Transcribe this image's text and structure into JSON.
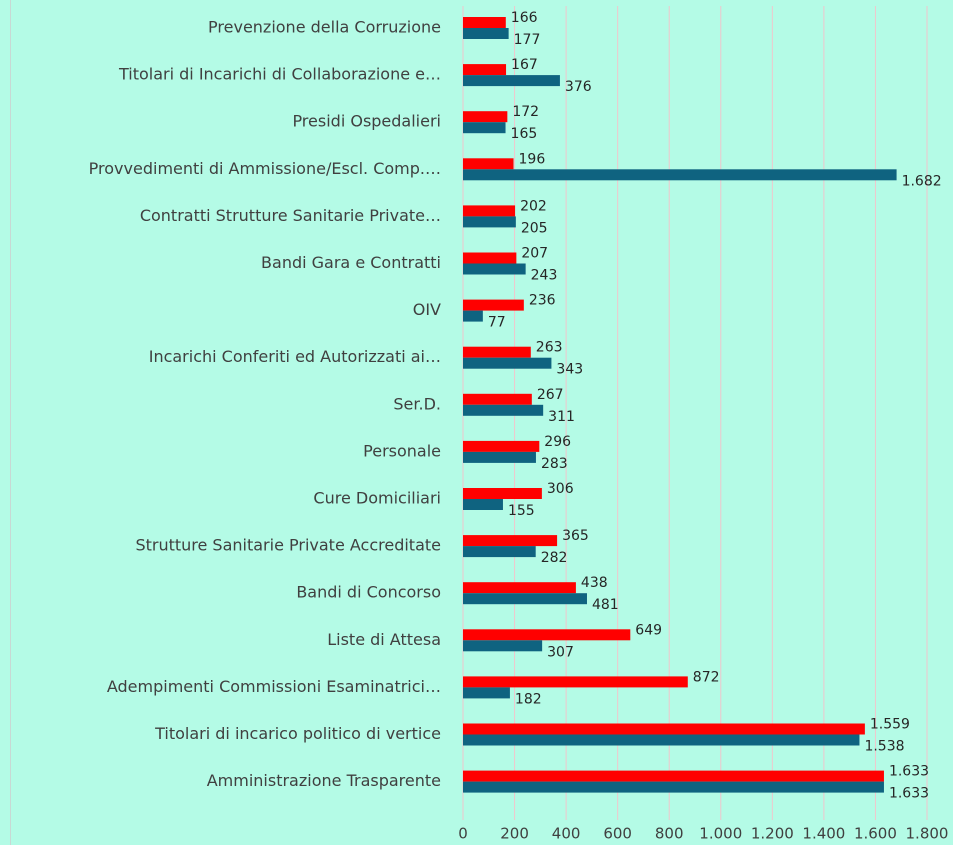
{
  "chart_data": {
    "type": "bar",
    "orientation": "horizontal",
    "categories": [
      "Prevenzione della Corruzione",
      "Titolari di Incarichi di Collaborazione e…",
      "Presidi Ospedalieri",
      "Provvedimenti di Ammissione/Escl. Comp.…",
      "Contratti Strutture Sanitarie Private…",
      "Bandi Gara e Contratti",
      "OIV",
      "Incarichi Conferiti ed Autorizzati ai…",
      "Ser.D.",
      "Personale",
      "Cure Domiciliari",
      "Strutture Sanitarie Private Accreditate",
      "Bandi di Concorso",
      "Liste di Attesa",
      "Adempimenti Commissioni Esaminatrici…",
      "Titolari di incarico politico di vertice",
      "Amministrazione Trasparente"
    ],
    "series": [
      {
        "color": "#ff0000",
        "values": [
          166,
          167,
          172,
          196,
          202,
          207,
          236,
          263,
          267,
          296,
          306,
          365,
          438,
          649,
          872,
          1559,
          1633
        ],
        "value_labels": [
          "166",
          "167",
          "172",
          "196",
          "202",
          "207",
          "236",
          "263",
          "267",
          "296",
          "306",
          "365",
          "438",
          "649",
          "872",
          "1.559",
          "1.633"
        ]
      },
      {
        "color": "#0f6380",
        "values": [
          177,
          376,
          165,
          1682,
          205,
          243,
          77,
          343,
          311,
          283,
          155,
          282,
          481,
          307,
          182,
          1538,
          1633
        ],
        "value_labels": [
          "177",
          "376",
          "165",
          "1.682",
          "205",
          "243",
          "77",
          "343",
          "311",
          "283",
          "155",
          "282",
          "481",
          "307",
          "182",
          "1.538",
          "1.633"
        ]
      }
    ],
    "xlim": [
      0,
      1800
    ],
    "xticks": [
      0,
      200,
      400,
      600,
      800,
      {
        "value": 1000,
        "label": "1.000"
      },
      {
        "value": 1200,
        "label": "1.200"
      },
      {
        "value": 1400,
        "label": "1.400"
      },
      {
        "value": 1600,
        "label": "1.600"
      },
      {
        "value": 1800,
        "label": "1.800"
      }
    ],
    "grid": true
  }
}
